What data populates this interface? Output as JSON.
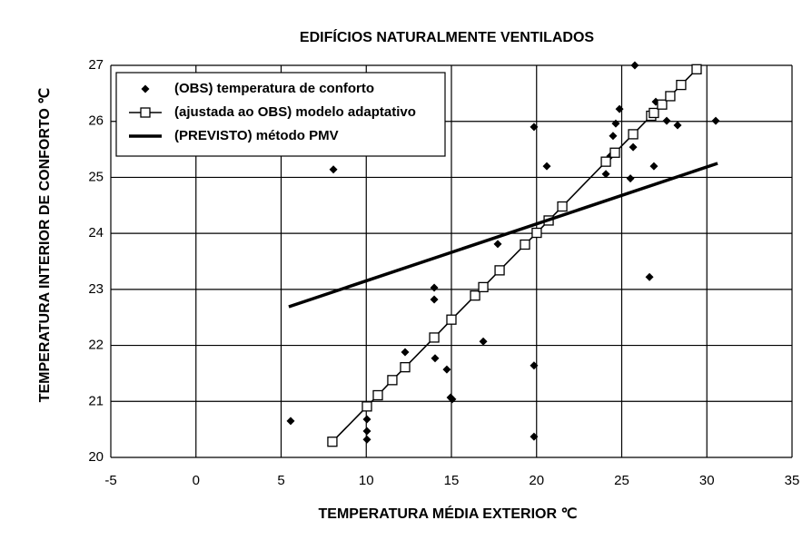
{
  "chart_data": {
    "type": "scatter",
    "title": "EDIFÍCIOS NATURALMENTE VENTILADOS",
    "xlabel": "TEMPERATURA MÉDIA EXTERIOR ℃",
    "ylabel": "TEMPERATURA INTERIOR DE CONFORTO ℃",
    "xlim": [
      -5,
      35
    ],
    "xticks": [
      -5,
      0,
      5,
      10,
      15,
      20,
      25,
      30,
      35
    ],
    "ylim": [
      20,
      27
    ],
    "yticks": [
      20,
      21,
      22,
      23,
      24,
      25,
      26,
      27
    ],
    "grid": true,
    "legend": "upper left",
    "series": [
      {
        "name": "(OBS) temperatura de conforto",
        "color": "#000000",
        "marker": "diamond",
        "line": false,
        "x": [
          5.56,
          8.07,
          10.04,
          10.04,
          10.04,
          12.28,
          13.99,
          13.99,
          14.04,
          14.73,
          14.95,
          15.05,
          16.87,
          17.72,
          19.85,
          19.85,
          19.85,
          20.6,
          24.07,
          24.33,
          24.49,
          24.65,
          24.87,
          25.51,
          25.67,
          25.67,
          25.77,
          26.63,
          26.89,
          27.0,
          27.64,
          28.28,
          30.52
        ],
        "values": [
          20.65,
          25.14,
          20.47,
          20.32,
          20.68,
          21.88,
          23.03,
          22.82,
          21.77,
          21.57,
          21.07,
          21.04,
          22.07,
          23.81,
          25.9,
          21.64,
          20.37,
          25.2,
          25.06,
          25.38,
          25.74,
          25.96,
          26.22,
          24.98,
          25.54,
          25.75,
          27.0,
          23.22,
          25.2,
          26.35,
          26.01,
          25.93,
          26.01
        ]
      },
      {
        "name": "(ajustada ao OBS) modelo adaptativo",
        "color": "#000000",
        "marker": "square",
        "line": true,
        "x": [
          8.01,
          10.04,
          10.68,
          11.53,
          12.28,
          13.99,
          15.0,
          16.39,
          16.87,
          17.83,
          19.32,
          20.01,
          20.71,
          21.51,
          24.07,
          24.6,
          25.67,
          26.73,
          26.89,
          27.37,
          27.85,
          28.49,
          29.4
        ],
        "values": [
          20.28,
          20.91,
          21.11,
          21.38,
          21.61,
          22.14,
          22.46,
          22.89,
          23.04,
          23.34,
          23.8,
          24.01,
          24.23,
          24.48,
          25.28,
          25.44,
          25.77,
          26.1,
          26.15,
          26.3,
          26.45,
          26.65,
          26.93
        ]
      },
      {
        "name": "(PREVISTO) método PMV",
        "color": "#000000",
        "marker": "none",
        "line": true,
        "x": [
          5.45,
          30.63
        ],
        "values": [
          22.69,
          25.25
        ]
      }
    ]
  }
}
